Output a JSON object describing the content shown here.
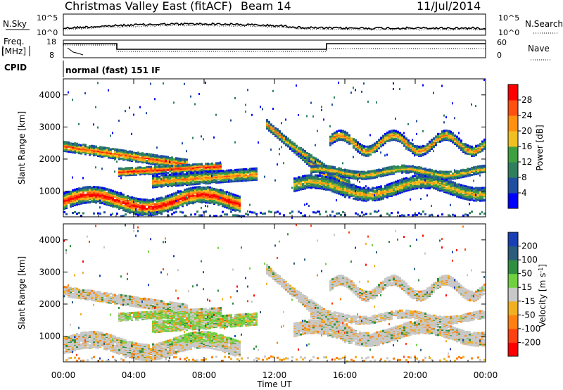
{
  "header": {
    "title": "Christmas Valley East (fitACF)",
    "beam": "Beam 14",
    "date": "11/Jul/2014"
  },
  "top_panels": {
    "nsky_label": "N.Sky",
    "nsearch_label": "N.Search",
    "noise_ticks": [
      "10^5",
      "10^0"
    ],
    "freq_label_1": "Freq.",
    "freq_label_2": "[MHz]",
    "freq_ticks": [
      "18",
      "8"
    ],
    "nave_label": "Nave",
    "nave_ticks": [
      "60",
      "0"
    ],
    "cpid_label": "CPID",
    "cpid_text": "normal (fast) 151 IF"
  },
  "chart_data": [
    {
      "type": "heatmap",
      "name": "power",
      "ylabel": "Slant Range [km]",
      "yticks": [
        "1000",
        "2000",
        "3000",
        "4000"
      ],
      "ylim": [
        200,
        4500
      ],
      "xticks": [
        "00:00",
        "04:00",
        "08:00",
        "12:00",
        "16:00",
        "20:00",
        "00:00"
      ],
      "xlim_hours": [
        0,
        24
      ],
      "colorbar_label": "Power [dB]",
      "colorbar_ticks": [
        "4",
        "8",
        "12",
        "16",
        "20",
        "24",
        "28"
      ],
      "colors": [
        "#0000ff",
        "#1f4fa0",
        "#2f7f5f",
        "#3fa040",
        "#f0c020",
        "#ff9010",
        "#ff5010",
        "#ff0000"
      ]
    },
    {
      "type": "heatmap",
      "name": "velocity",
      "ylabel": "Slant Range [km]",
      "yticks": [
        "1000",
        "2000",
        "3000",
        "4000"
      ],
      "ylim": [
        200,
        4500
      ],
      "xticks": [
        "00:00",
        "04:00",
        "08:00",
        "12:00",
        "16:00",
        "20:00",
        "00:00"
      ],
      "xlabel": "Time UT",
      "colorbar_label": "Velocity [m s",
      "colorbar_label_sup": "-1",
      "colorbar_label_end": "]",
      "colorbar_ticks": [
        "200",
        "100",
        "50",
        "15",
        "-15",
        "-50",
        "-100",
        "-200"
      ],
      "colors": [
        "#1a3fb5",
        "#2b5d7a",
        "#2f8f3f",
        "#70d040",
        "#c8c8c8",
        "#f0b020",
        "#ff8010",
        "#ff4010",
        "#ff0000"
      ]
    }
  ]
}
